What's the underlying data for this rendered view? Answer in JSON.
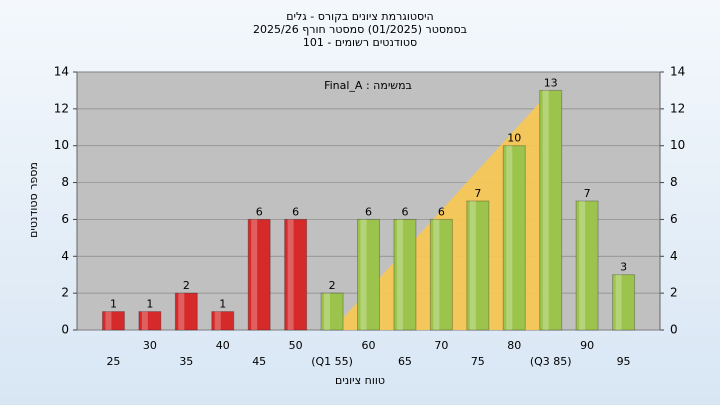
{
  "chart_data": {
    "type": "bar",
    "title": [
      "היסטוגרמת ציונים בקורס - גלים",
      "בסמסטר  (01/2025)  סמסטר חורף 2025/26",
      "סטודנטים רשומים - 101"
    ],
    "annotation": "Final_A : במשימה",
    "x_label": "טווח ציונים",
    "y_label": "מספר סטודנטים",
    "categories": [
      "25",
      "30",
      "35",
      "40",
      "45",
      "50",
      "(Q1 55)",
      "60",
      "65",
      "70",
      "75",
      "80",
      "(Q3 85)",
      "90",
      "95"
    ],
    "values": [
      1,
      1,
      2,
      1,
      6,
      6,
      2,
      6,
      6,
      6,
      7,
      10,
      13,
      7,
      3
    ],
    "colors": [
      "#d62a2a",
      "#d62a2a",
      "#d62a2a",
      "#d62a2a",
      "#d62a2a",
      "#d62a2a",
      "#9cc44c",
      "#9cc44c",
      "#9cc44c",
      "#9cc44c",
      "#9cc44c",
      "#9cc44c",
      "#9cc44c",
      "#9cc44c",
      "#9cc44c"
    ],
    "ylim": [
      0,
      14
    ],
    "yticks": [
      0,
      2,
      4,
      6,
      8,
      10,
      12,
      14
    ],
    "grid": true
  }
}
